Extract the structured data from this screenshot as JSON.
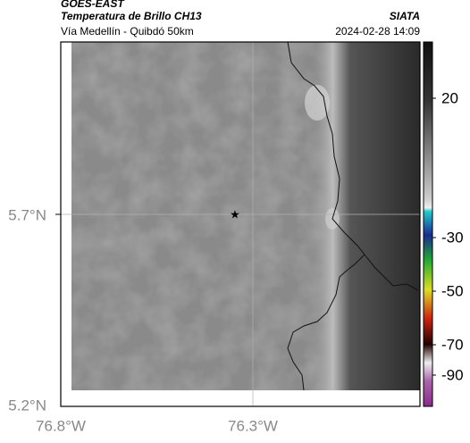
{
  "header": {
    "title": "GOES-EAST",
    "subtitle": "Temperatura de Brillo CH13",
    "location": "Vía Medellín - Quibdó 50km",
    "agency": "SIATA",
    "datetime": "2024-02-28 14:09"
  },
  "map": {
    "lat_labels": [
      "5.7°N",
      "5.2°N"
    ],
    "lon_labels": [
      "76.8°W",
      "76.3°W"
    ]
  },
  "colorbar": {
    "ticks": [
      20,
      -30,
      -50,
      -70,
      -90
    ]
  }
}
